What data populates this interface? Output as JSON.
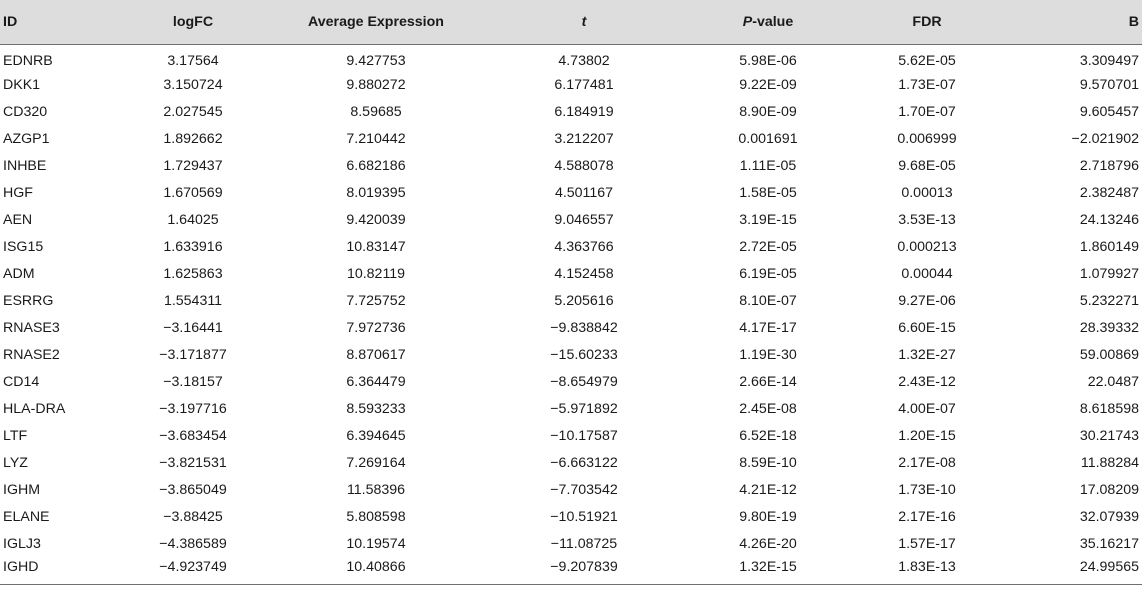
{
  "chart_data": {
    "type": "table",
    "headers": {
      "id": "ID",
      "logfc": "logFC",
      "avg_expr": "Average Expression",
      "t": "t",
      "p_main": "P",
      "p_suffix": "-value",
      "fdr": "FDR",
      "b": "B"
    },
    "rows": [
      [
        "EDNRB",
        "3.17564",
        "9.427753",
        "4.73802",
        "5.98E-06",
        "5.62E-05",
        "3.309497"
      ],
      [
        "DKK1",
        "3.150724",
        "9.880272",
        "6.177481",
        "9.22E-09",
        "1.73E-07",
        "9.570701"
      ],
      [
        "CD320",
        "2.027545",
        "8.59685",
        "6.184919",
        "8.90E-09",
        "1.70E-07",
        "9.605457"
      ],
      [
        "AZGP1",
        "1.892662",
        "7.210442",
        "3.212207",
        "0.001691",
        "0.006999",
        "−2.021902"
      ],
      [
        "INHBE",
        "1.729437",
        "6.682186",
        "4.588078",
        "1.11E-05",
        "9.68E-05",
        "2.718796"
      ],
      [
        "HGF",
        "1.670569",
        "8.019395",
        "4.501167",
        "1.58E-05",
        "0.00013",
        "2.382487"
      ],
      [
        "AEN",
        "1.64025",
        "9.420039",
        "9.046557",
        "3.19E-15",
        "3.53E-13",
        "24.13246"
      ],
      [
        "ISG15",
        "1.633916",
        "10.83147",
        "4.363766",
        "2.72E-05",
        "0.000213",
        "1.860149"
      ],
      [
        "ADM",
        "1.625863",
        "10.82119",
        "4.152458",
        "6.19E-05",
        "0.00044",
        "1.079927"
      ],
      [
        "ESRRG",
        "1.554311",
        "7.725752",
        "5.205616",
        "8.10E-07",
        "9.27E-06",
        "5.232271"
      ],
      [
        "RNASE3",
        "−3.16441",
        "7.972736",
        "−9.838842",
        "4.17E-17",
        "6.60E-15",
        "28.39332"
      ],
      [
        "RNASE2",
        "−3.171877",
        "8.870617",
        "−15.60233",
        "1.19E-30",
        "1.32E-27",
        "59.00869"
      ],
      [
        "CD14",
        "−3.18157",
        "6.364479",
        "−8.654979",
        "2.66E-14",
        "2.43E-12",
        "22.0487"
      ],
      [
        "HLA-DRA",
        "−3.197716",
        "8.593233",
        "−5.971892",
        "2.45E-08",
        "4.00E-07",
        "8.618598"
      ],
      [
        "LTF",
        "−3.683454",
        "6.394645",
        "−10.17587",
        "6.52E-18",
        "1.20E-15",
        "30.21743"
      ],
      [
        "LYZ",
        "−3.821531",
        "7.269164",
        "−6.663122",
        "8.59E-10",
        "2.17E-08",
        "11.88284"
      ],
      [
        "IGHM",
        "−3.865049",
        "11.58396",
        "−7.703542",
        "4.21E-12",
        "1.73E-10",
        "17.08209"
      ],
      [
        "ELANE",
        "−3.88425",
        "5.808598",
        "−10.51921",
        "9.80E-19",
        "2.17E-16",
        "32.07939"
      ],
      [
        "IGLJ3",
        "−4.386589",
        "10.19574",
        "−11.08725",
        "4.26E-20",
        "1.57E-17",
        "35.16217"
      ],
      [
        "IGHD",
        "−4.923749",
        "10.40866",
        "−9.207839",
        "1.32E-15",
        "1.83E-13",
        "24.99565"
      ]
    ]
  }
}
